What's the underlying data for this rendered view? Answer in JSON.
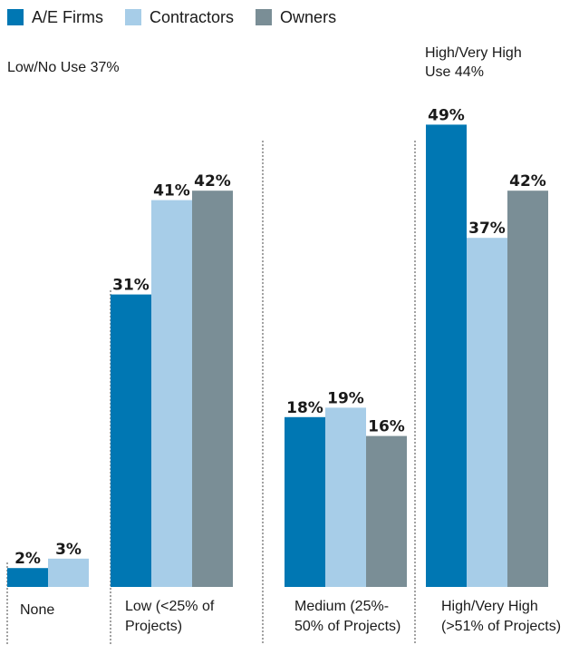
{
  "chart_data": {
    "type": "bar",
    "title": "",
    "xlabel": "",
    "ylabel": "",
    "ylim": [
      0,
      50
    ],
    "grid": false,
    "legend_position": "top-left",
    "categories": [
      [
        "None"
      ],
      [
        "Low (<25% of",
        "Projects)"
      ],
      [
        "Medium (25%-",
        "50% of Projects)"
      ],
      [
        "High/Very High",
        "(>51% of Projects)"
      ]
    ],
    "series": [
      {
        "name": "A/E Firms",
        "color": "#0077b3",
        "values": [
          2,
          31,
          18,
          49
        ]
      },
      {
        "name": "Contractors",
        "color": "#a7cde8",
        "values": [
          3,
          41,
          19,
          37
        ]
      },
      {
        "name": "Owners",
        "color": "#7a8e96",
        "values": [
          null,
          42,
          16,
          42
        ]
      }
    ],
    "value_suffix": "%",
    "annotations": [
      {
        "id": "lownouse",
        "lines": [
          "Low/No Use 37%"
        ]
      },
      {
        "id": "highuse",
        "lines": [
          "High/Very High",
          "Use 44%"
        ]
      }
    ]
  }
}
